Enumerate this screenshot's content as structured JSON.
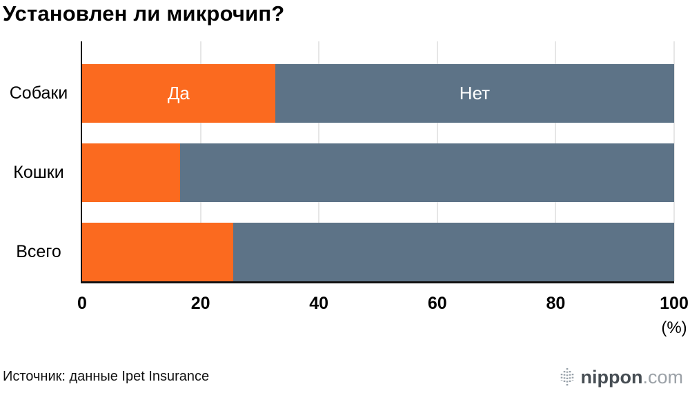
{
  "title": "Установлен ли микрочип?",
  "footer": {
    "source": "Источник: данные Ipet Insurance",
    "logo_text": "nippon",
    "logo_suffix": ".com"
  },
  "colors": {
    "yes": "#fb6a1f",
    "no": "#5d7387",
    "grid": "#cccccc",
    "axis": "#111111",
    "logo_icon": "#97a1a9"
  },
  "chart_data": {
    "type": "bar",
    "orientation": "horizontal",
    "stacked": true,
    "title": "Установлен ли микрочип?",
    "categories": [
      "Собаки",
      "Кошки",
      "Всего"
    ],
    "series": [
      {
        "name": "Да",
        "color": "#fb6a1f",
        "values": [
          32.6,
          16.5,
          25.5
        ]
      },
      {
        "name": "Нет",
        "color": "#5d7387",
        "values": [
          67.4,
          83.5,
          74.5
        ]
      }
    ],
    "xlim": [
      0,
      100
    ],
    "x_ticks": [
      "0",
      "20",
      "40",
      "60",
      "80",
      "100"
    ],
    "x_unit": "(%)",
    "segment_labels_row": 0,
    "grid": true,
    "legend": "inline-first-bar"
  }
}
